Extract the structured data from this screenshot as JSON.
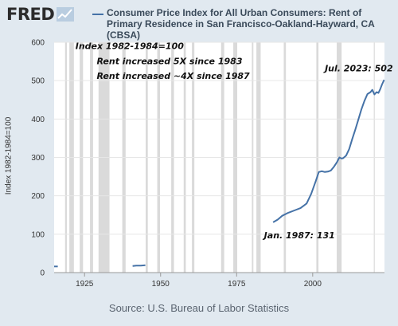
{
  "brand": {
    "logo_text": "FRED",
    "logo_icon": "line-chart-icon"
  },
  "source": "Source: U.S. Bureau of Labor Statistics",
  "colors": {
    "line": "#4572a7",
    "recession": "#dadada",
    "plot_bg": "#ffffff",
    "page_bg": "#e1e9f0",
    "grid": "#e6e6e6"
  },
  "chart_data": {
    "type": "line",
    "title": "Consumer Price Index for All Urban Consumers: Rent of Primary Residence in San Francisco-Oakland-Hayward, CA (CBSA)",
    "ylabel": "Index 1982-1984=100",
    "xlim": [
      1915,
      2023.6
    ],
    "ylim": [
      0,
      600
    ],
    "x_ticks": [
      1925,
      1950,
      1975,
      2000
    ],
    "y_ticks": [
      0,
      100,
      200,
      300,
      400,
      500,
      600
    ],
    "grid": "horizontal",
    "legend": "top",
    "annotations": [
      {
        "text": "Index 1982-1984=100",
        "x": 1922,
        "y": 582
      },
      {
        "text": "Rent increased 5X since 1983",
        "x": 1929,
        "y": 543
      },
      {
        "text": "Rent increased ~4X since 1987",
        "x": 1929,
        "y": 505
      },
      {
        "text": "Jul. 2023: 502",
        "x": 2004,
        "y": 524
      },
      {
        "text": "Jan. 1987: 131",
        "x": 1984,
        "y": 89
      }
    ],
    "recessions": [
      [
        1918.6,
        1919.2
      ],
      [
        1920.0,
        1921.5
      ],
      [
        1923.4,
        1924.5
      ],
      [
        1926.8,
        1927.8
      ],
      [
        1929.6,
        1933.2
      ],
      [
        1937.4,
        1938.5
      ],
      [
        1945.1,
        1945.8
      ],
      [
        1948.9,
        1949.8
      ],
      [
        1953.5,
        1954.4
      ],
      [
        1957.6,
        1958.3
      ],
      [
        1960.3,
        1961.1
      ],
      [
        1969.9,
        1970.9
      ],
      [
        1973.9,
        1975.2
      ],
      [
        1980.0,
        1980.5
      ],
      [
        1981.5,
        1982.9
      ],
      [
        1990.5,
        1991.2
      ],
      [
        2001.2,
        2001.9
      ],
      [
        2007.9,
        2009.5
      ],
      [
        2020.1,
        2020.4
      ]
    ],
    "series": [
      {
        "segments": [
          [
            [
              1915,
              16
            ],
            [
              1916.2,
              16
            ]
          ],
          [
            [
              1940.8,
              17
            ],
            [
              1942,
              18
            ],
            [
              1943.5,
              18
            ],
            [
              1945,
              19
            ]
          ],
          [
            [
              1987.0,
              131
            ],
            [
              1988.5,
              138
            ],
            [
              1990,
              148
            ],
            [
              1992,
              156
            ],
            [
              1994,
              162
            ],
            [
              1996,
              168
            ],
            [
              1998,
              180
            ],
            [
              1999.5,
              205
            ],
            [
              2001,
              238
            ],
            [
              2002,
              262
            ],
            [
              2003,
              264
            ],
            [
              2004,
              262
            ],
            [
              2005,
              263
            ],
            [
              2006,
              266
            ],
            [
              2007,
              276
            ],
            [
              2008,
              288
            ],
            [
              2008.8,
              300
            ],
            [
              2009.5,
              297
            ],
            [
              2010,
              298
            ],
            [
              2011,
              305
            ],
            [
              2012,
              322
            ],
            [
              2013,
              348
            ],
            [
              2014,
              372
            ],
            [
              2015,
              398
            ],
            [
              2016,
              425
            ],
            [
              2017,
              447
            ],
            [
              2018,
              465
            ],
            [
              2019,
              470
            ],
            [
              2019.6,
              476
            ],
            [
              2020.3,
              464
            ],
            [
              2021,
              470
            ],
            [
              2021.6,
              468
            ],
            [
              2022.2,
              478
            ],
            [
              2022.8,
              490
            ],
            [
              2023.5,
              502
            ]
          ]
        ]
      }
    ]
  }
}
